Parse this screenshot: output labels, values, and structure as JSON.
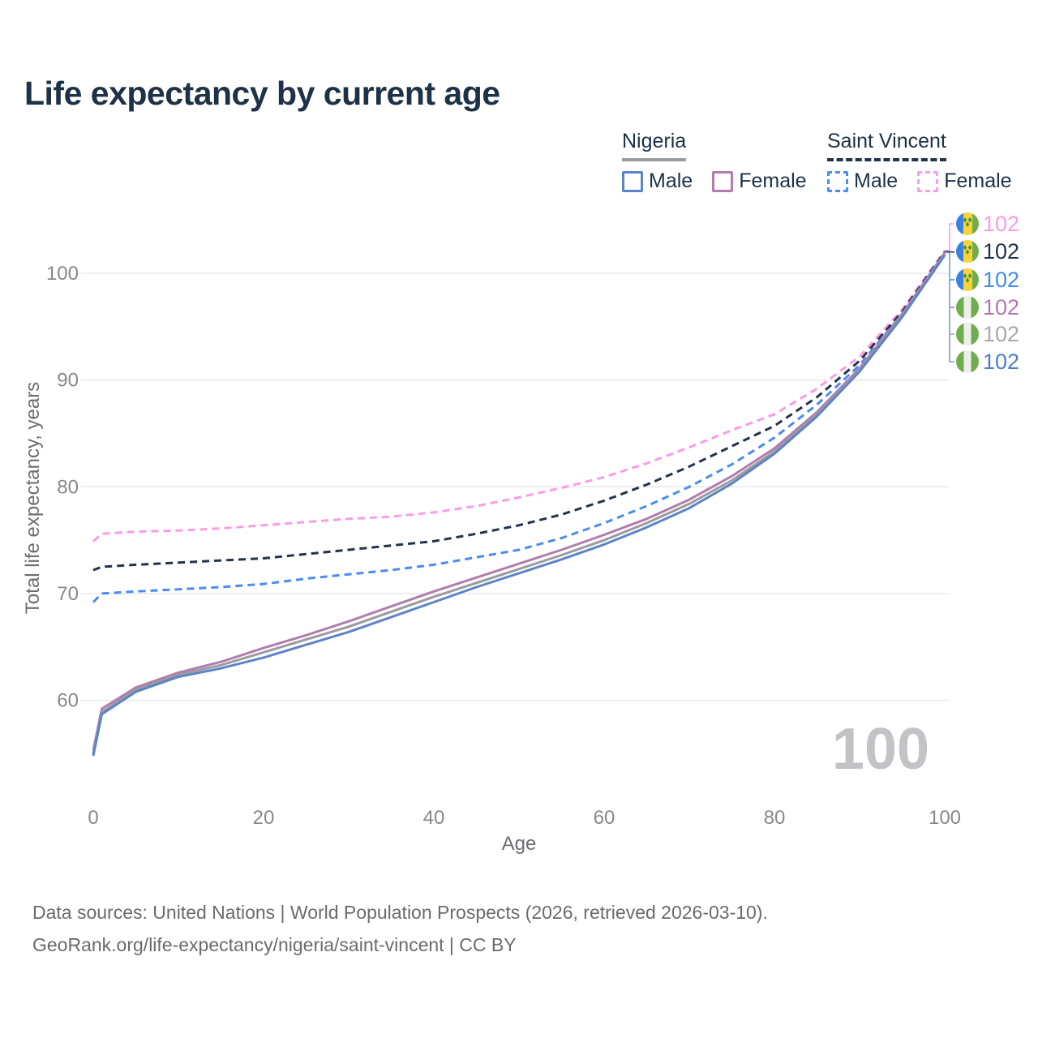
{
  "title": "Life expectancy by current age",
  "legend": {
    "groups": [
      {
        "country": "Nigeria",
        "line_style": "solid",
        "underline_color": "#9b9b9b",
        "items": [
          {
            "label": "Male",
            "color": "#5b84c9"
          },
          {
            "label": "Female",
            "color": "#b27cae"
          }
        ]
      },
      {
        "country": "Saint Vincent",
        "line_style": "dashed",
        "underline_color": "#22334a",
        "items": [
          {
            "label": "Male",
            "color": "#4a8cf0"
          },
          {
            "label": "Female",
            "color": "#fa9ce8"
          }
        ]
      }
    ]
  },
  "chart_data": {
    "type": "line",
    "title": "Life expectancy by current age",
    "xlabel": "Age",
    "ylabel": "Total life expectancy, years",
    "xlim": [
      0,
      100
    ],
    "ylim": [
      54,
      103
    ],
    "xticks": [
      0,
      20,
      40,
      60,
      80,
      100
    ],
    "yticks": [
      60,
      70,
      80,
      90,
      100
    ],
    "grid": "horizontal-only",
    "legend_position": "top-right",
    "x": [
      0,
      1,
      5,
      10,
      15,
      20,
      25,
      30,
      35,
      40,
      45,
      50,
      55,
      60,
      65,
      70,
      75,
      80,
      85,
      90,
      95,
      100
    ],
    "series": [
      {
        "name": "Saint Vincent Female",
        "country": "Saint Vincent",
        "sex": "Female",
        "style": "dashed",
        "color": "#fa9ce8",
        "values": [
          74.9,
          75.6,
          75.8,
          75.9,
          76.1,
          76.4,
          76.7,
          77.0,
          77.2,
          77.6,
          78.2,
          79.0,
          79.9,
          80.9,
          82.2,
          83.7,
          85.3,
          86.8,
          89.2,
          92.2,
          96.6,
          102.1
        ]
      },
      {
        "name": "Saint Vincent All",
        "country": "Saint Vincent",
        "sex": "All",
        "style": "dashed",
        "color": "#22334a",
        "values": [
          72.2,
          72.5,
          72.7,
          72.9,
          73.1,
          73.3,
          73.7,
          74.1,
          74.5,
          74.9,
          75.6,
          76.4,
          77.4,
          78.7,
          80.2,
          81.9,
          83.8,
          85.7,
          88.4,
          91.8,
          96.4,
          102.0
        ]
      },
      {
        "name": "Saint Vincent Male",
        "country": "Saint Vincent",
        "sex": "Male",
        "style": "dashed",
        "color": "#4a8cf0",
        "values": [
          69.2,
          70.0,
          70.2,
          70.4,
          70.6,
          70.9,
          71.4,
          71.8,
          72.2,
          72.7,
          73.4,
          74.1,
          75.2,
          76.6,
          78.2,
          80.0,
          82.1,
          84.6,
          87.7,
          91.4,
          96.2,
          101.9
        ]
      },
      {
        "name": "Nigeria Female",
        "country": "Nigeria",
        "sex": "Female",
        "style": "solid",
        "color": "#b27cae",
        "values": [
          55.3,
          59.2,
          61.2,
          62.6,
          63.6,
          64.9,
          66.1,
          67.4,
          68.8,
          70.2,
          71.5,
          72.8,
          74.1,
          75.5,
          77.0,
          78.8,
          81.0,
          83.6,
          87.0,
          91.1,
          96.2,
          101.9
        ]
      },
      {
        "name": "Nigeria All",
        "country": "Nigeria",
        "sex": "All",
        "style": "solid",
        "color": "#9b9b9f",
        "values": [
          55.0,
          58.9,
          61.0,
          62.4,
          63.3,
          64.5,
          65.7,
          66.9,
          68.3,
          69.7,
          71.0,
          72.3,
          73.6,
          75.0,
          76.6,
          78.4,
          80.6,
          83.3,
          86.8,
          90.9,
          96.0,
          101.8
        ]
      },
      {
        "name": "Nigeria Male",
        "country": "Nigeria",
        "sex": "Male",
        "style": "solid",
        "color": "#5b84c9",
        "values": [
          54.8,
          58.7,
          60.8,
          62.2,
          63.0,
          64.0,
          65.2,
          66.4,
          67.8,
          69.2,
          70.6,
          71.9,
          73.2,
          74.6,
          76.2,
          78.0,
          80.3,
          83.1,
          86.6,
          90.8,
          95.9,
          101.7
        ]
      }
    ],
    "end_labels": [
      {
        "series": "Saint Vincent Female",
        "value": "102",
        "color": "#fa9ce8",
        "flag": "saint-vincent"
      },
      {
        "series": "Saint Vincent All",
        "value": "102",
        "color": "#22334a",
        "flag": "saint-vincent"
      },
      {
        "series": "Saint Vincent Male",
        "value": "102",
        "color": "#3f8cf0",
        "flag": "saint-vincent"
      },
      {
        "series": "Nigeria Female",
        "value": "102",
        "color": "#b07ab0",
        "flag": "nigeria"
      },
      {
        "series": "Nigeria All",
        "value": "102",
        "color": "#a8a8ae",
        "flag": "nigeria"
      },
      {
        "series": "Nigeria Male",
        "value": "102",
        "color": "#4f7ec9",
        "flag": "nigeria"
      }
    ],
    "watermark": "100"
  },
  "footer": {
    "line1": "Data sources: United Nations | World Population Prospects (2026, retrieved 2026-03-10).",
    "line2": "GeoRank.org/life-expectancy/nigeria/saint-vincent | CC BY"
  }
}
